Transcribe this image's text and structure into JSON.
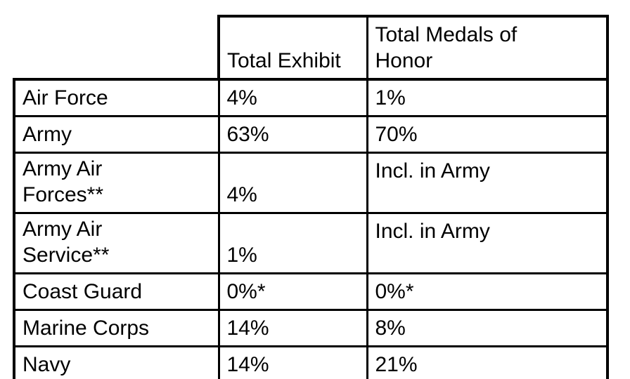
{
  "page": {
    "background_color": "#ffffff",
    "text_color": "#000000",
    "border_color": "#000000"
  },
  "table": {
    "header": {
      "service_column_label": "",
      "total_exhibit_label": "Total Exhibit",
      "total_medals_label": "Total Medals of\nHonor"
    },
    "rows": [
      {
        "service": "Air Force",
        "total_exhibit": "4%",
        "total_medals": "1%"
      },
      {
        "service": "Army",
        "total_exhibit": "63%",
        "total_medals": "70%"
      },
      {
        "service": "Army Air\nForces**",
        "total_exhibit": "4%",
        "total_medals": "Incl. in Army"
      },
      {
        "service": "Army Air\nService**",
        "total_exhibit": "1%",
        "total_medals": "Incl. in Army"
      },
      {
        "service": "Coast Guard",
        "total_exhibit": "0%*",
        "total_medals": "0%*"
      },
      {
        "service": "Marine Corps",
        "total_exhibit": "14%",
        "total_medals": "8%"
      },
      {
        "service": "Navy",
        "total_exhibit": "14%",
        "total_medals": "21%"
      }
    ]
  }
}
